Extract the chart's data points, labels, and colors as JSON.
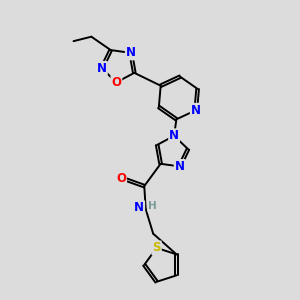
{
  "background_color": "#dcdcdc",
  "bond_color": "#000000",
  "atom_colors": {
    "N": "#0000ff",
    "O": "#ff0000",
    "S": "#ccbb00",
    "H": "#7a9a9a",
    "C": "#000000"
  },
  "figsize": [
    3.0,
    3.0
  ],
  "dpi": 100,
  "lw": 1.4,
  "fs": 8.5,
  "fs_small": 7.5
}
